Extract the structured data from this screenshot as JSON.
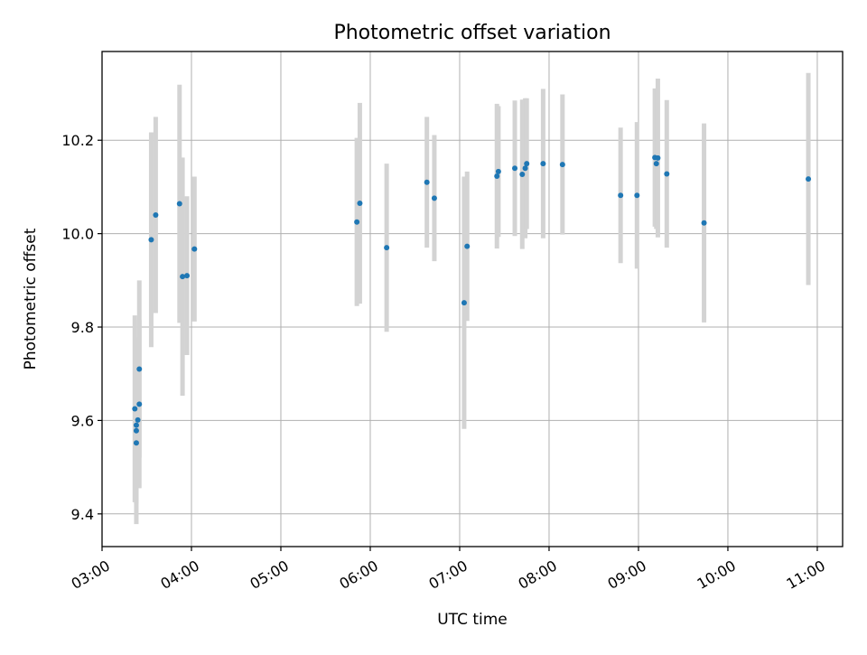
{
  "chart_data": {
    "type": "scatter",
    "title": "Photometric offset variation",
    "xlabel": "UTC time",
    "ylabel": "Photometric offset",
    "xlim": [
      "03:00",
      "11:17"
    ],
    "ylim": [
      9.33,
      10.39
    ],
    "grid": true,
    "x_ticks": [
      "03:00",
      "04:00",
      "05:00",
      "06:00",
      "07:00",
      "08:00",
      "09:00",
      "10:00",
      "11:00"
    ],
    "y_ticks": [
      9.4,
      9.6,
      9.8,
      10.0,
      10.2
    ],
    "colors": {
      "point": "#1f77b4",
      "errorbar": "#d3d3d3",
      "grid": "#b0b0b0"
    },
    "points": [
      {
        "x": "03:22",
        "y": 9.625,
        "err": 0.2
      },
      {
        "x": "03:23",
        "y": 9.552,
        "err": 0.13
      },
      {
        "x": "03:23",
        "y": 9.578,
        "err": 0.2
      },
      {
        "x": "03:23",
        "y": 9.59,
        "err": 0.16
      },
      {
        "x": "03:24",
        "y": 9.601,
        "err": 0.12
      },
      {
        "x": "03:25",
        "y": 9.635,
        "err": 0.18
      },
      {
        "x": "03:25",
        "y": 9.71,
        "err": 0.19
      },
      {
        "x": "03:33",
        "y": 9.987,
        "err": 0.23
      },
      {
        "x": "03:36",
        "y": 10.04,
        "err": 0.21
      },
      {
        "x": "03:52",
        "y": 10.064,
        "err": 0.255
      },
      {
        "x": "03:54",
        "y": 9.908,
        "err": 0.255
      },
      {
        "x": "03:57",
        "y": 9.91,
        "err": 0.17
      },
      {
        "x": "04:02",
        "y": 9.967,
        "err": 0.155
      },
      {
        "x": "05:51",
        "y": 10.025,
        "err": 0.18
      },
      {
        "x": "05:53",
        "y": 10.065,
        "err": 0.215
      },
      {
        "x": "06:11",
        "y": 9.97,
        "err": 0.18
      },
      {
        "x": "06:38",
        "y": 10.11,
        "err": 0.14
      },
      {
        "x": "06:43",
        "y": 10.076,
        "err": 0.135
      },
      {
        "x": "07:03",
        "y": 9.852,
        "err": 0.27
      },
      {
        "x": "07:05",
        "y": 9.973,
        "err": 0.16
      },
      {
        "x": "07:25",
        "y": 10.123,
        "err": 0.155
      },
      {
        "x": "07:26",
        "y": 10.133,
        "err": 0.14
      },
      {
        "x": "07:37",
        "y": 10.14,
        "err": 0.145
      },
      {
        "x": "07:42",
        "y": 10.127,
        "err": 0.16
      },
      {
        "x": "07:44",
        "y": 10.14,
        "err": 0.15
      },
      {
        "x": "07:45",
        "y": 10.15,
        "err": 0.14
      },
      {
        "x": "07:56",
        "y": 10.15,
        "err": 0.16
      },
      {
        "x": "08:09",
        "y": 10.148,
        "err": 0.15
      },
      {
        "x": "08:48",
        "y": 10.082,
        "err": 0.145
      },
      {
        "x": "08:59",
        "y": 10.082,
        "err": 0.157
      },
      {
        "x": "09:11",
        "y": 10.163,
        "err": 0.148
      },
      {
        "x": "09:12",
        "y": 10.15,
        "err": 0.14
      },
      {
        "x": "09:13",
        "y": 10.162,
        "err": 0.17
      },
      {
        "x": "09:19",
        "y": 10.128,
        "err": 0.158
      },
      {
        "x": "09:44",
        "y": 10.023,
        "err": 0.213
      },
      {
        "x": "10:54",
        "y": 10.117,
        "err": 0.227
      }
    ]
  }
}
